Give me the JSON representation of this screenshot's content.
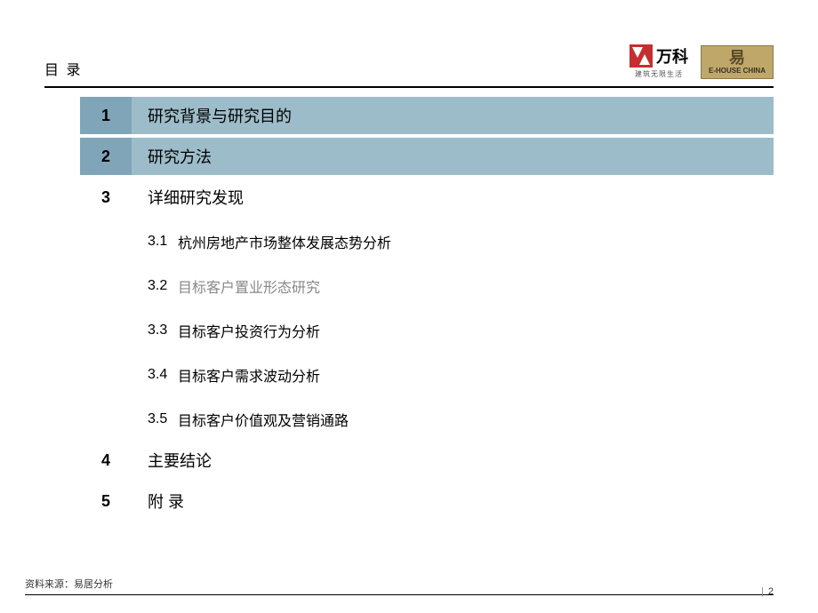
{
  "header": {
    "title": "目 录",
    "logo_vanke_text": "万科",
    "logo_vanke_sub": "建筑无限生活",
    "logo_ehouse_icon": "易",
    "logo_ehouse_text": "E-HOUSE CHINA"
  },
  "toc": [
    {
      "num": "1",
      "text": "研究背景与研究目的",
      "highlighted": true
    },
    {
      "num": "2",
      "text": "研究方法",
      "highlighted": true
    },
    {
      "num": "3",
      "text": "详细研究发现",
      "highlighted": false,
      "subs": [
        {
          "num": "3.1",
          "text": "杭州房地产市场整体发展态势分析",
          "gray": false
        },
        {
          "num": "3.2",
          "text": "目标客户置业形态研究",
          "gray": true
        },
        {
          "num": "3.3",
          "text": "目标客户投资行为分析",
          "gray": false
        },
        {
          "num": "3.4",
          "text": "目标客户需求波动分析",
          "gray": false
        },
        {
          "num": "3.5",
          "text": "目标客户价值观及营销通路",
          "gray": false
        }
      ]
    },
    {
      "num": "4",
      "text": "主要结论",
      "highlighted": false
    },
    {
      "num": "5",
      "text": "附 录",
      "highlighted": false
    }
  ],
  "footer": {
    "source": "资料来源：易居分析",
    "page": "2"
  },
  "colors": {
    "highlight_num_bg": "#81a5b8",
    "highlight_text_bg": "#9dbcc9",
    "divider": "#000000",
    "gray_text": "#888888"
  }
}
